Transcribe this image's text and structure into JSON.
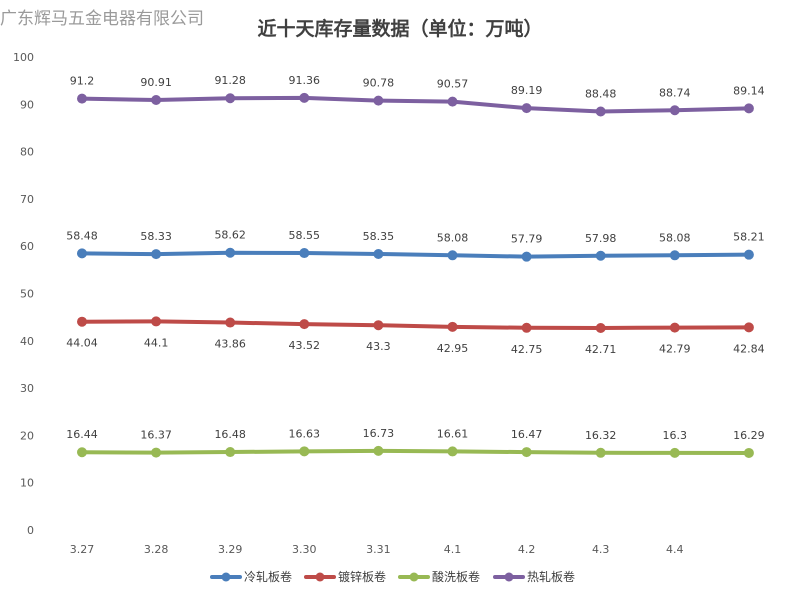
{
  "watermark": "广东辉马五金电器有限公司",
  "chart_data": {
    "type": "line",
    "title": "近十天库存量数据（单位：万吨）",
    "categories": [
      "3.27",
      "3.28",
      "3.29",
      "3.30",
      "3.31",
      "4.1",
      "4.2",
      "4.3",
      "4.4",
      ""
    ],
    "ylim": [
      0,
      100
    ],
    "yticks": [
      0,
      10,
      20,
      30,
      40,
      50,
      60,
      70,
      80,
      90,
      100
    ],
    "grid": false,
    "legend_position": "bottom",
    "series": [
      {
        "name": "冷轧板卷",
        "color": "#4a7ebb",
        "label_position": "above",
        "values": [
          58.48,
          58.33,
          58.62,
          58.55,
          58.35,
          58.08,
          57.79,
          57.98,
          58.08,
          58.21
        ]
      },
      {
        "name": "镀锌板卷",
        "color": "#be4b48",
        "label_position": "below",
        "values": [
          44.04,
          44.1,
          43.86,
          43.52,
          43.3,
          42.95,
          42.75,
          42.71,
          42.79,
          42.84
        ]
      },
      {
        "name": "酸洗板卷",
        "color": "#98b954",
        "label_position": "above",
        "values": [
          16.44,
          16.37,
          16.48,
          16.63,
          16.73,
          16.61,
          16.47,
          16.32,
          16.3,
          16.29
        ]
      },
      {
        "name": "热轧板卷",
        "color": "#7d60a0",
        "label_position": "above",
        "values": [
          91.2,
          90.91,
          91.28,
          91.36,
          90.78,
          90.57,
          89.19,
          88.48,
          88.74,
          89.14
        ]
      }
    ]
  }
}
